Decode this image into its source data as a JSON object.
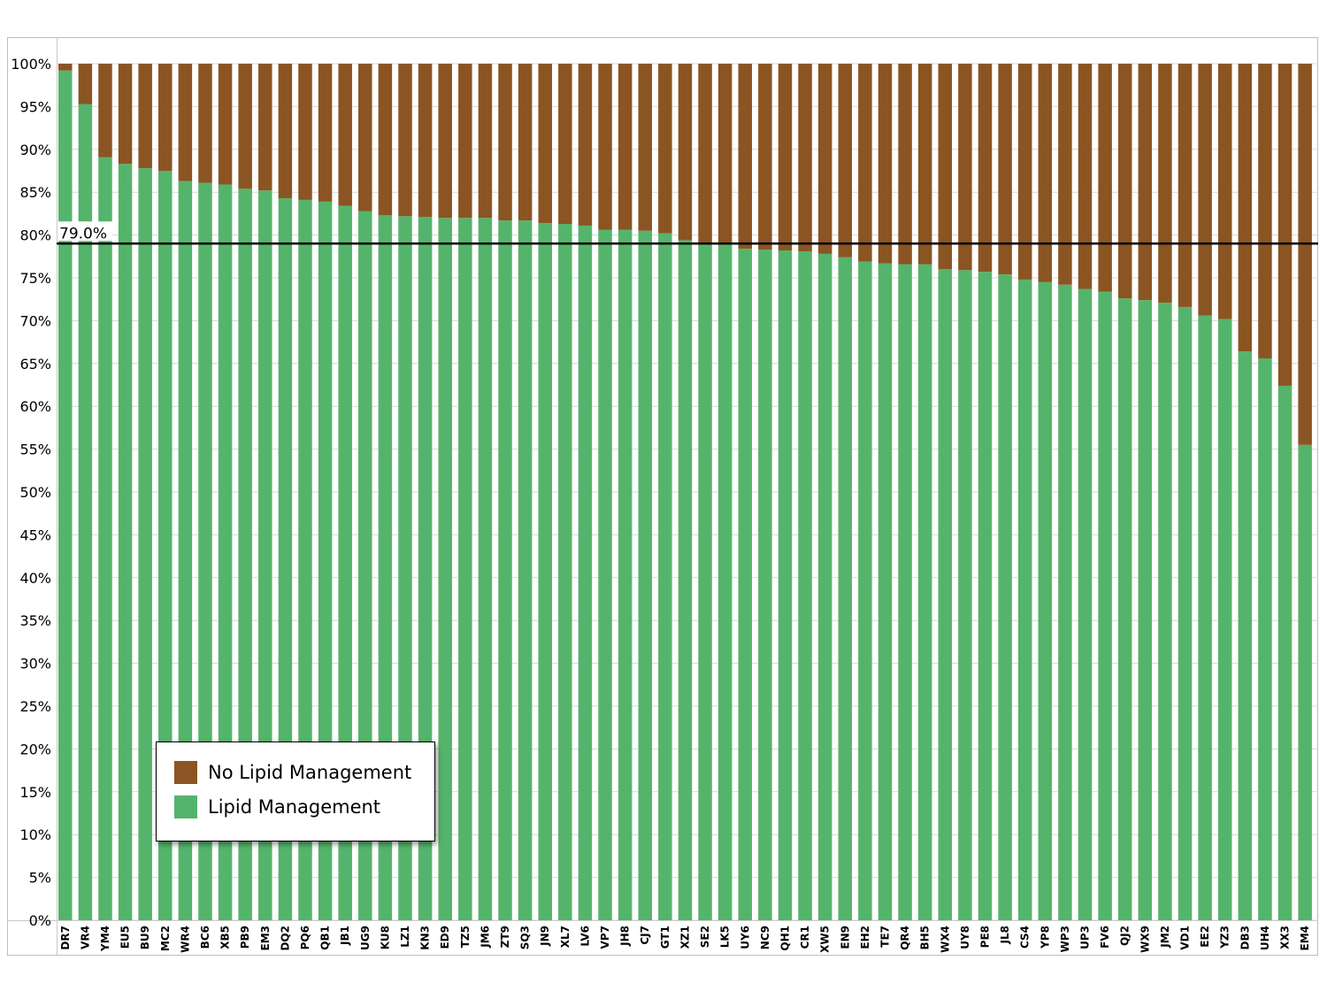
{
  "chart_data": {
    "type": "bar",
    "stacked": true,
    "orientation": "vertical",
    "categories": [
      "DR7",
      "VR4",
      "YM4",
      "EU5",
      "BU9",
      "MC2",
      "WR4",
      "BC6",
      "XB5",
      "PB9",
      "EM3",
      "DQ2",
      "PQ6",
      "QB1",
      "JB1",
      "UG9",
      "KU8",
      "LZ1",
      "KN3",
      "ED9",
      "TZ5",
      "JM6",
      "ZT9",
      "SQ3",
      "JN9",
      "XL7",
      "LV6",
      "VP7",
      "JH8",
      "CJ7",
      "GT1",
      "XZ1",
      "SE2",
      "LK5",
      "UY6",
      "NC9",
      "QH1",
      "CR1",
      "XW5",
      "EN9",
      "EH2",
      "TE7",
      "QR4",
      "BH5",
      "WX4",
      "UY8",
      "PE8",
      "JL8",
      "CS4",
      "YP8",
      "WP3",
      "UP3",
      "FV6",
      "QJ2",
      "WX9",
      "JM2",
      "VD1",
      "EE2",
      "YZ3",
      "DB3",
      "UH4",
      "XX3",
      "EM4"
    ],
    "series": [
      {
        "name": "Lipid Management",
        "color": "#55b46c",
        "values": [
          99.2,
          95.3,
          89.1,
          88.3,
          87.8,
          87.5,
          86.3,
          86.1,
          85.9,
          85.4,
          85.2,
          84.3,
          84.1,
          83.9,
          83.4,
          82.8,
          82.3,
          82.2,
          82.1,
          82.0,
          82.0,
          82.0,
          81.7,
          81.7,
          81.4,
          81.3,
          81.1,
          80.6,
          80.6,
          80.5,
          80.2,
          79.4,
          78.9,
          78.9,
          78.4,
          78.3,
          78.2,
          78.1,
          77.8,
          77.4,
          76.9,
          76.7,
          76.6,
          76.6,
          76.0,
          75.9,
          75.7,
          75.4,
          74.8,
          74.5,
          74.2,
          73.7,
          73.4,
          72.6,
          72.4,
          72.1,
          71.6,
          70.6,
          70.2,
          66.4,
          65.6,
          62.4,
          55.5
        ]
      },
      {
        "name": "No Lipid Management",
        "color": "#8b5423",
        "values": [
          0.8,
          4.7,
          10.9,
          11.7,
          12.2,
          12.5,
          13.7,
          13.9,
          14.1,
          14.6,
          14.8,
          15.7,
          15.9,
          16.1,
          16.6,
          17.2,
          17.7,
          17.8,
          17.9,
          18.0,
          18.0,
          18.0,
          18.3,
          18.3,
          18.6,
          18.7,
          18.9,
          19.4,
          19.4,
          19.5,
          19.8,
          20.6,
          21.1,
          21.1,
          21.6,
          21.7,
          21.8,
          21.9,
          22.2,
          22.6,
          23.1,
          23.3,
          23.4,
          23.4,
          24.0,
          24.1,
          24.3,
          24.6,
          25.2,
          25.5,
          25.8,
          26.3,
          26.6,
          27.4,
          27.6,
          27.9,
          28.4,
          29.4,
          29.8,
          33.6,
          34.4,
          37.6,
          44.5
        ]
      }
    ],
    "yticks": [
      "0%",
      "5%",
      "10%",
      "15%",
      "20%",
      "25%",
      "30%",
      "35%",
      "40%",
      "45%",
      "50%",
      "55%",
      "60%",
      "65%",
      "70%",
      "75%",
      "80%",
      "85%",
      "90%",
      "95%",
      "100%"
    ],
    "ylim": [
      0,
      100
    ],
    "reference_line": {
      "value": 79.0,
      "label": "79.0%"
    },
    "grid": "horizontal",
    "legend_position": "bottom-left",
    "title": "",
    "xlabel": "",
    "ylabel": ""
  },
  "legend": {
    "items": [
      {
        "label": "No Lipid Management",
        "color": "#8b5423"
      },
      {
        "label": "Lipid Management",
        "color": "#55b46c"
      }
    ]
  }
}
